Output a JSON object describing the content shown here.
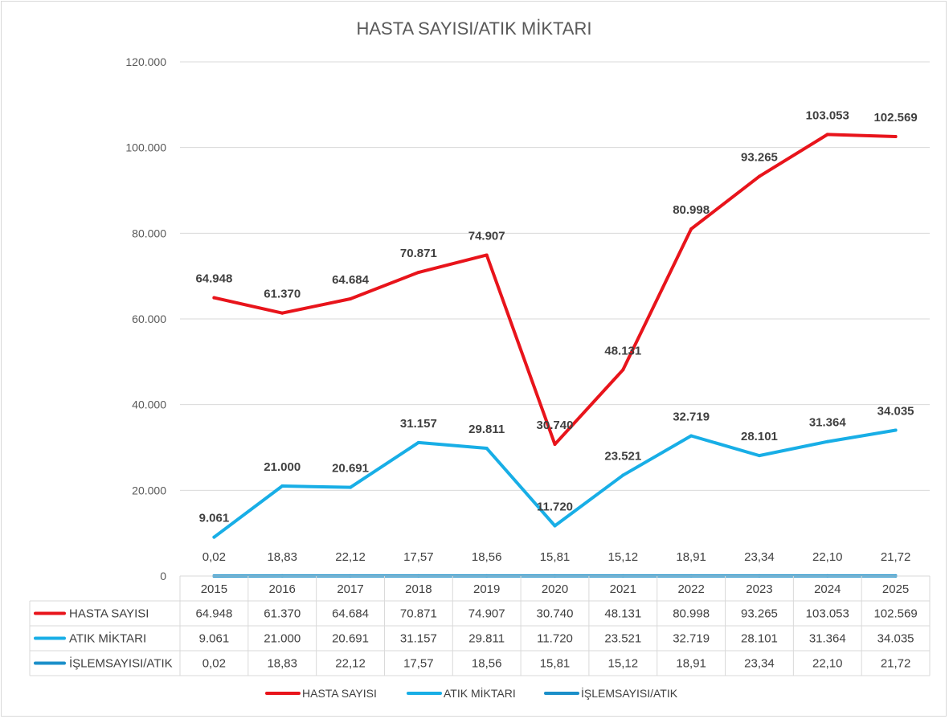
{
  "chart_data": {
    "type": "line",
    "title": "HASTA SAYISI/ATIK MİKTARI",
    "categories": [
      "2015",
      "2016",
      "2017",
      "2018",
      "2019",
      "2020",
      "2021",
      "2022",
      "2023",
      "2024",
      "2025"
    ],
    "ylim": [
      0,
      120000
    ],
    "y_ticks": [
      {
        "value": 0,
        "label": "0"
      },
      {
        "value": 20000,
        "label": "20.000"
      },
      {
        "value": 40000,
        "label": "40.000"
      },
      {
        "value": 60000,
        "label": "60.000"
      },
      {
        "value": 80000,
        "label": "80.000"
      },
      {
        "value": 100000,
        "label": "100.000"
      },
      {
        "value": 120000,
        "label": "120.000"
      }
    ],
    "grid": true,
    "legend_position": "bottom",
    "data_table": true,
    "series": [
      {
        "name": "HASTA SAYISI",
        "color": "#e8141b",
        "values": [
          64948,
          61370,
          64684,
          70871,
          74907,
          30740,
          48131,
          80998,
          93265,
          103053,
          102569
        ],
        "labels": [
          "64.948",
          "61.370",
          "64.684",
          "70.871",
          "74.907",
          "30.740",
          "48.131",
          "80.998",
          "93.265",
          "103.053",
          "102.569"
        ]
      },
      {
        "name": "ATIK MİKTARI",
        "color": "#18aee6",
        "values": [
          9061,
          21000,
          20691,
          31157,
          29811,
          11720,
          23521,
          32719,
          28101,
          31364,
          34035
        ],
        "labels": [
          "9.061",
          "21.000",
          "20.691",
          "31.157",
          "29.811",
          "11.720",
          "23.521",
          "32.719",
          "28.101",
          "31.364",
          "34.035"
        ]
      },
      {
        "name": "İŞLEMSAYISI/ATIK",
        "color": "#1b8fc9",
        "values": [
          0.02,
          18.83,
          22.12,
          17.57,
          18.56,
          15.81,
          15.12,
          18.91,
          23.34,
          22.1,
          21.72
        ],
        "labels": [
          "0,02",
          "18,83",
          "22,12",
          "17,57",
          "18,56",
          "15,81",
          "15,12",
          "18,91",
          "23,34",
          "22,10",
          "21,72"
        ]
      }
    ]
  }
}
